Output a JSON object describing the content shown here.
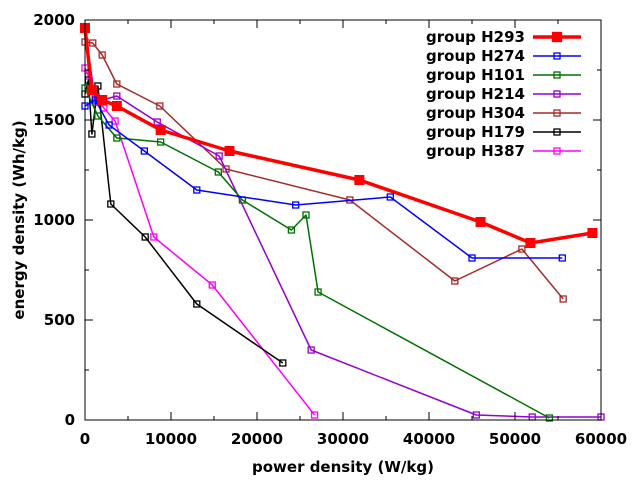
{
  "chart_data": {
    "type": "line",
    "title": "",
    "xlabel": "power density (W/kg)",
    "ylabel": "energy density (Wh/kg)",
    "xlim": [
      0,
      60000
    ],
    "ylim": [
      0,
      2000
    ],
    "xticks": [
      0,
      10000,
      20000,
      30000,
      40000,
      50000,
      60000
    ],
    "yticks": [
      0,
      500,
      1000,
      1500,
      2000
    ],
    "grid": false,
    "legend_position": "top-right",
    "series": [
      {
        "name": "group H293",
        "color": "#ff0000",
        "emphasis": true,
        "x": [
          0,
          800,
          2000,
          3700,
          8800,
          16800,
          31900,
          46000,
          51800,
          59000
        ],
        "y": [
          1960,
          1650,
          1600,
          1570,
          1450,
          1345,
          1200,
          990,
          885,
          935
        ]
      },
      {
        "name": "group H274",
        "color": "#0000ff",
        "x": [
          0,
          1200,
          2800,
          6900,
          13000,
          24500,
          35500,
          45000,
          55500
        ],
        "y": [
          1570,
          1600,
          1475,
          1345,
          1150,
          1075,
          1115,
          810,
          810
        ]
      },
      {
        "name": "group H101",
        "color": "#007000",
        "x": [
          0,
          1500,
          3700,
          8800,
          15500,
          18300,
          24000,
          25700,
          27100,
          54000
        ],
        "y": [
          1660,
          1520,
          1410,
          1390,
          1240,
          1100,
          950,
          1025,
          640,
          10
        ]
      },
      {
        "name": "group H214",
        "color": "#9400d3",
        "x": [
          0,
          1200,
          3700,
          8400,
          15600,
          26300,
          45500,
          52000,
          60000
        ],
        "y": [
          1960,
          1590,
          1620,
          1490,
          1320,
          350,
          25,
          15,
          15
        ]
      },
      {
        "name": "group H304",
        "color": "#a52a2a",
        "x": [
          0,
          900,
          2000,
          3700,
          8700,
          16400,
          30800,
          43000,
          50800,
          55600
        ],
        "y": [
          1890,
          1885,
          1825,
          1680,
          1570,
          1255,
          1100,
          695,
          855,
          605
        ]
      },
      {
        "name": "group H179",
        "color": "#000000",
        "x": [
          0,
          400,
          800,
          1500,
          3000,
          7000,
          13000,
          23000
        ],
        "y": [
          1630,
          1700,
          1430,
          1670,
          1080,
          915,
          580,
          285
        ]
      },
      {
        "name": "group H387",
        "color": "#ff00ff",
        "x": [
          0,
          400,
          1200,
          2200,
          3500,
          8000,
          14800,
          26700
        ],
        "y": [
          1760,
          1720,
          1610,
          1560,
          1495,
          915,
          675,
          25
        ]
      }
    ]
  }
}
